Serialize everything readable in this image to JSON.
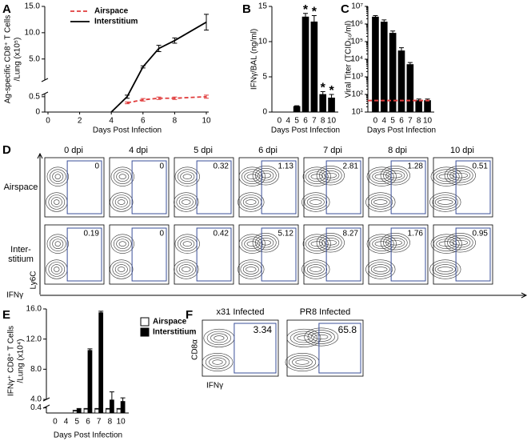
{
  "chart_data": [
    {
      "type": "line",
      "panel_label": "A",
      "ylabel": [
        "Ag-specific CD8⁺ T Cells",
        "/Lung (x10⁵)"
      ],
      "xlabel": "Days Post Infection",
      "xlim": [
        0,
        10
      ],
      "xticks": [
        0,
        2,
        4,
        6,
        8,
        10
      ],
      "ylim": [
        0,
        15
      ],
      "ybreak": [
        0.6,
        1
      ],
      "yticks": [
        0,
        0.5,
        {
          "value": 5,
          "label": "5.0"
        },
        {
          "value": 10,
          "label": "10.0"
        },
        {
          "value": 15,
          "label": "15.0"
        }
      ],
      "legend": "top-left",
      "series": [
        {
          "name": "Airspace",
          "color": "#e03c3c",
          "dashed": true,
          "x": [
            5,
            6,
            7,
            8,
            10
          ],
          "values": [
            0.3,
            0.4,
            0.45,
            0.45,
            0.5
          ],
          "errors": [
            0.03,
            0.04,
            0.04,
            0.04,
            0.05
          ]
        },
        {
          "name": "Interstitium",
          "color": "#000000",
          "x": [
            4,
            5,
            6,
            7,
            8,
            10
          ],
          "values": [
            0,
            0.5,
            3.5,
            7,
            8.5,
            12
          ],
          "errors": [
            0,
            0.05,
            0.2,
            0.6,
            0.5,
            1.5
          ]
        }
      ]
    },
    {
      "type": "bar",
      "panel_label": "B",
      "ylabel": [
        "IFNγ/BAL (ng/ml)"
      ],
      "xlabel": "Days Post Infection",
      "categories": [
        "0",
        "4",
        "5",
        "6",
        "7",
        "8",
        "10"
      ],
      "values": [
        0,
        0,
        0.8,
        13.5,
        12.8,
        2.5,
        2.0
      ],
      "errors": [
        0,
        0,
        0.1,
        0.5,
        0.9,
        0.4,
        0.5
      ],
      "significance": [
        null,
        null,
        null,
        "*",
        "*",
        "*",
        "*"
      ],
      "color": "#000000",
      "ylim": [
        0,
        15
      ],
      "yticks": [
        0,
        5,
        10,
        15
      ]
    },
    {
      "type": "bar",
      "panel_label": "C",
      "ylabel": [
        "Viral Titer (TCID₅₀/ml)"
      ],
      "xlabel": "Days Post Infection",
      "categories": [
        "0",
        "4",
        "5",
        "6",
        "7",
        "8",
        "10"
      ],
      "values": [
        2500000,
        1300000,
        300000,
        30000,
        5000,
        45,
        45
      ],
      "errors": [
        500000,
        400000,
        100000,
        15000,
        1500,
        10,
        10
      ],
      "color": "#000000",
      "log": true,
      "ylim": [
        10,
        10000000
      ],
      "yticks": [
        {
          "value": 10,
          "label": "10¹"
        },
        {
          "value": 100,
          "label": "10²"
        },
        {
          "value": 1000,
          "label": "10³"
        },
        {
          "value": 10000,
          "label": "10⁴"
        },
        {
          "value": 100000,
          "label": "10⁵"
        },
        {
          "value": 1000000,
          "label": "10⁶"
        },
        {
          "value": 10000000,
          "label": "10⁷"
        }
      ],
      "reference_line": {
        "value": 45,
        "color": "#e03c3c"
      }
    },
    {
      "type": "bar",
      "panel_label": "E",
      "ylabel": [
        "IFNγ⁺ CD8⁺ T Cells",
        "/Lung (x10⁴)"
      ],
      "xlabel": "Days Post Infection",
      "categories": [
        "0",
        "4",
        "5",
        "6",
        "7",
        "8",
        "10"
      ],
      "ylim": [
        0,
        16
      ],
      "ybreak": [
        0.5,
        4
      ],
      "yticks": [
        0.4,
        {
          "value": 4,
          "label": "4.0"
        },
        {
          "value": 8,
          "label": "8.0"
        },
        {
          "value": 12,
          "label": "12.0"
        },
        {
          "value": 16,
          "label": "16.0"
        }
      ],
      "legend": "top-right",
      "series": [
        {
          "name": "Airspace",
          "color": "#ffffff",
          "values": [
            0,
            0,
            0.15,
            0.3,
            0.3,
            0.3,
            0.3
          ],
          "errors": [
            0,
            0,
            0.05,
            0.05,
            0.05,
            0.05,
            0.05
          ]
        },
        {
          "name": "Interstitium",
          "color": "#000000",
          "values": [
            0,
            0,
            0.3,
            10.5,
            15.5,
            3.7,
            3.0
          ],
          "errors": [
            0,
            0,
            0.05,
            0.2,
            0.2,
            1.3,
            1.2
          ]
        }
      ]
    }
  ],
  "panel_d": {
    "panel_label": "D",
    "columns": [
      "0 dpi",
      "4 dpi",
      "5 dpi",
      "6 dpi",
      "7 dpi",
      "8 dpi",
      "10 dpi"
    ],
    "rows": [
      {
        "label": [
          "Airspace"
        ],
        "gates": [
          "0",
          "0",
          "0.32",
          "1.13",
          "2.81",
          "1.28",
          "0.51"
        ]
      },
      {
        "label": [
          "Inter-",
          "stitium"
        ],
        "gates": [
          "0.19",
          "0",
          "0.42",
          "5.12",
          "8.27",
          "1.76",
          "0.95"
        ]
      }
    ],
    "y_axis": "Ly6C",
    "x_axis": "IFNγ"
  },
  "panel_f": {
    "panel_label": "F",
    "plots": [
      {
        "title": "x31 Infected",
        "gate": "3.34"
      },
      {
        "title": "PR8 Infected",
        "gate": "65.8"
      }
    ],
    "y_axis": "CD8α",
    "x_axis": "IFNγ"
  }
}
